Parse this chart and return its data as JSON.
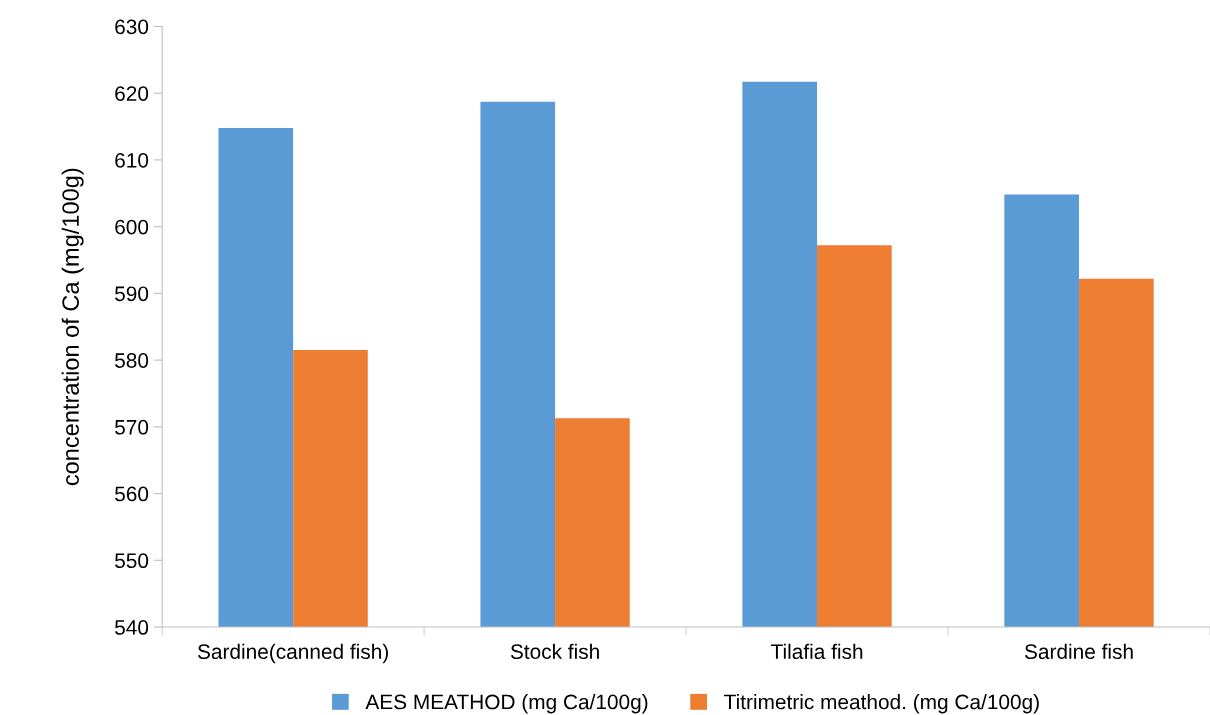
{
  "chart_data": {
    "type": "bar",
    "ylabel": "concentration of Ca (mg/100g)",
    "categories": [
      "Sardine(canned fish)",
      "Stock fish",
      "Tilafia fish",
      "Sardine fish"
    ],
    "series": [
      {
        "name": "AES MEATHOD (mg Ca/100g)",
        "color": "#5b9bd5",
        "values": [
          614.8,
          618.7,
          621.7,
          604.8
        ]
      },
      {
        "name": "Titrimetric meathod. (mg Ca/100g)",
        "color": "#ed7d31",
        "values": [
          581.5,
          571.3,
          597.2,
          592.2
        ]
      }
    ],
    "ylim": [
      540,
      630
    ],
    "yticks": [
      540,
      550,
      560,
      570,
      580,
      590,
      600,
      610,
      620,
      630
    ],
    "grid": false,
    "legend": "bottom"
  }
}
